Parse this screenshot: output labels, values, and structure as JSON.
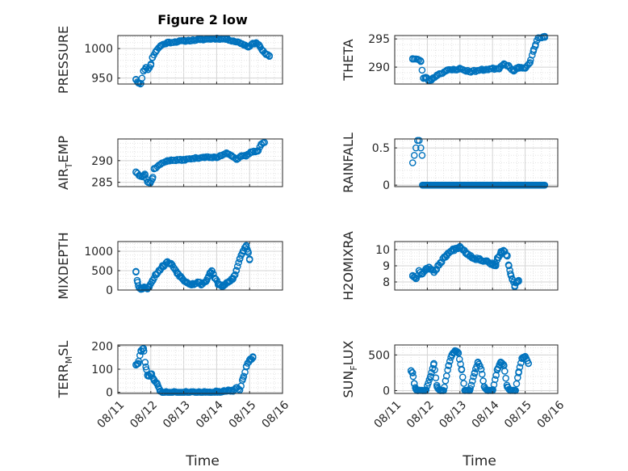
{
  "figure": {
    "title": "Figure 2 low",
    "xlabel": "Time"
  },
  "chart_data": [
    {
      "type": "scatter",
      "ylabel": "PRESSURE",
      "ylabel_parts": [
        "PRESSURE"
      ],
      "ylim": [
        940,
        1022
      ],
      "yticks": [
        950,
        1000
      ],
      "xlim": [
        0,
        5
      ],
      "xticks": [
        "08/11",
        "08/12",
        "08/13",
        "08/14",
        "08/15",
        "08/16"
      ],
      "grid": true,
      "anchors": [
        [
          0.55,
          948
        ],
        [
          0.62,
          942
        ],
        [
          0.7,
          941
        ],
        [
          0.78,
          962
        ],
        [
          0.85,
          968
        ],
        [
          0.92,
          965
        ],
        [
          1.0,
          972
        ],
        [
          1.05,
          985
        ],
        [
          1.15,
          995
        ],
        [
          1.3,
          1005
        ],
        [
          1.5,
          1010
        ],
        [
          2.0,
          1013
        ],
        [
          2.5,
          1015
        ],
        [
          3.0,
          1017
        ],
        [
          3.3,
          1016
        ],
        [
          3.5,
          1013
        ],
        [
          3.7,
          1010
        ],
        [
          3.85,
          1006
        ],
        [
          3.95,
          1003
        ],
        [
          4.1,
          1008
        ],
        [
          4.2,
          1010
        ],
        [
          4.3,
          1005
        ],
        [
          4.4,
          996
        ],
        [
          4.5,
          990
        ],
        [
          4.6,
          988
        ]
      ],
      "n": 90,
      "seed": 11,
      "noise": 1.2
    },
    {
      "type": "scatter",
      "ylabel": "THETA",
      "ylabel_parts": [
        "THETA"
      ],
      "ylim": [
        287,
        295.6
      ],
      "yticks": [
        290,
        295
      ],
      "xlim": [
        0,
        5
      ],
      "xticks": [
        "08/11",
        "08/12",
        "08/13",
        "08/14",
        "08/15",
        "08/16"
      ],
      "grid": true,
      "anchors": [
        [
          0.55,
          291.5
        ],
        [
          0.7,
          291.4
        ],
        [
          0.8,
          291
        ],
        [
          0.88,
          288
        ],
        [
          0.95,
          288.2
        ],
        [
          1.05,
          287.6
        ],
        [
          1.15,
          287.9
        ],
        [
          1.3,
          288.6
        ],
        [
          1.6,
          289.4
        ],
        [
          2.0,
          289.7
        ],
        [
          2.3,
          289.2
        ],
        [
          2.8,
          289.6
        ],
        [
          3.2,
          289.8
        ],
        [
          3.35,
          290.6
        ],
        [
          3.5,
          290.2
        ],
        [
          3.65,
          289.3
        ],
        [
          3.8,
          290.0
        ],
        [
          4.0,
          289.8
        ],
        [
          4.15,
          290.8
        ],
        [
          4.25,
          292.8
        ],
        [
          4.32,
          294.0
        ],
        [
          4.4,
          295.2
        ],
        [
          4.6,
          295.3
        ]
      ],
      "n": 85,
      "seed": 23,
      "noise": 0.15
    },
    {
      "type": "scatter",
      "ylabel": "AIR_TEMP",
      "ylabel_parts": [
        "AIR",
        "T",
        "EMP"
      ],
      "ylim": [
        284,
        295
      ],
      "yticks": [
        285,
        290
      ],
      "xlim": [
        0,
        5
      ],
      "xticks": [
        "08/11",
        "08/12",
        "08/13",
        "08/14",
        "08/15",
        "08/16"
      ],
      "grid": true,
      "anchors": [
        [
          0.55,
          287.4
        ],
        [
          0.65,
          286.6
        ],
        [
          0.75,
          286.4
        ],
        [
          0.82,
          286.9
        ],
        [
          0.9,
          285.1
        ],
        [
          0.98,
          284.8
        ],
        [
          1.05,
          285.8
        ],
        [
          1.1,
          288.1
        ],
        [
          1.3,
          289.2
        ],
        [
          1.5,
          290.0
        ],
        [
          2.0,
          290.2
        ],
        [
          2.3,
          290.5
        ],
        [
          2.6,
          290.8
        ],
        [
          3.0,
          290.7
        ],
        [
          3.3,
          291.8
        ],
        [
          3.45,
          291.2
        ],
        [
          3.6,
          290.3
        ],
        [
          3.75,
          291.0
        ],
        [
          3.9,
          291.1
        ],
        [
          4.05,
          292.0
        ],
        [
          4.25,
          292.2
        ],
        [
          4.35,
          293.8
        ],
        [
          4.45,
          294.2
        ]
      ],
      "n": 85,
      "seed": 37,
      "noise": 0.15
    },
    {
      "type": "scatter",
      "ylabel": "RAINFALL",
      "ylabel_parts": [
        "RAINFALL"
      ],
      "ylim": [
        -0.02,
        0.62
      ],
      "yticks": [
        0,
        0.5
      ],
      "tick_labels": [
        "0",
        "0.5"
      ],
      "xlim": [
        0,
        5
      ],
      "xticks": [
        "08/11",
        "08/12",
        "08/13",
        "08/14",
        "08/15",
        "08/16"
      ],
      "grid": true,
      "anchors": [
        [
          0.55,
          0.3
        ],
        [
          0.6,
          0.4
        ],
        [
          0.65,
          0.5
        ],
        [
          0.7,
          0.6
        ],
        [
          0.75,
          0.6
        ],
        [
          0.8,
          0.5
        ],
        [
          0.84,
          0.4
        ],
        [
          0.87,
          0.5
        ],
        [
          0.92,
          0.5
        ],
        [
          0.95,
          0.5
        ],
        [
          0.85,
          0.0
        ],
        [
          4.6,
          0.0
        ]
      ],
      "n": 120,
      "seed": 41,
      "noise": 0,
      "flat_from": 0.85,
      "flat_value": 0
    },
    {
      "type": "scatter",
      "ylabel": "MIXDEPTH",
      "ylabel_parts": [
        "MIXDEPTH"
      ],
      "ylim": [
        0,
        1250
      ],
      "yticks": [
        0,
        500,
        1000
      ],
      "xlim": [
        0,
        5
      ],
      "xticks": [
        "08/11",
        "08/12",
        "08/13",
        "08/14",
        "08/15",
        "08/16"
      ],
      "grid": true,
      "anchors": [
        [
          0.55,
          480
        ],
        [
          0.6,
          200
        ],
        [
          0.65,
          50
        ],
        [
          0.7,
          20
        ],
        [
          0.8,
          80
        ],
        [
          0.9,
          30
        ],
        [
          0.95,
          100
        ],
        [
          1.05,
          250
        ],
        [
          1.15,
          400
        ],
        [
          1.25,
          500
        ],
        [
          1.35,
          600
        ],
        [
          1.5,
          720
        ],
        [
          1.65,
          650
        ],
        [
          1.8,
          450
        ],
        [
          1.95,
          300
        ],
        [
          2.1,
          200
        ],
        [
          2.25,
          150
        ],
        [
          2.45,
          200
        ],
        [
          2.55,
          150
        ],
        [
          2.7,
          250
        ],
        [
          2.8,
          450
        ],
        [
          2.85,
          500
        ],
        [
          2.95,
          300
        ],
        [
          3.05,
          150
        ],
        [
          3.2,
          100
        ],
        [
          3.35,
          200
        ],
        [
          3.5,
          300
        ],
        [
          3.6,
          500
        ],
        [
          3.7,
          800
        ],
        [
          3.8,
          1000
        ],
        [
          3.9,
          1150
        ],
        [
          3.95,
          1000
        ],
        [
          4.0,
          800
        ]
      ],
      "n": 95,
      "seed": 53,
      "noise": 30
    },
    {
      "type": "scatter",
      "ylabel": "H2OMIXRA",
      "ylabel_parts": [
        "H2OMIXRA"
      ],
      "ylim": [
        7.5,
        10.5
      ],
      "yticks": [
        8,
        9,
        10
      ],
      "xlim": [
        0,
        5
      ],
      "xticks": [
        "08/11",
        "08/12",
        "08/13",
        "08/14",
        "08/15",
        "08/16"
      ],
      "grid": true,
      "anchors": [
        [
          0.55,
          8.4
        ],
        [
          0.65,
          8.2
        ],
        [
          0.75,
          8.7
        ],
        [
          0.85,
          8.5
        ],
        [
          0.95,
          8.8
        ],
        [
          1.05,
          8.9
        ],
        [
          1.2,
          8.6
        ],
        [
          1.4,
          9.2
        ],
        [
          1.6,
          9.7
        ],
        [
          1.8,
          10.0
        ],
        [
          2.0,
          10.2
        ],
        [
          2.2,
          9.8
        ],
        [
          2.4,
          9.5
        ],
        [
          2.6,
          9.4
        ],
        [
          2.8,
          9.3
        ],
        [
          3.0,
          9.1
        ],
        [
          3.1,
          9.0
        ],
        [
          3.15,
          9.5
        ],
        [
          3.25,
          9.8
        ],
        [
          3.35,
          9.9
        ],
        [
          3.45,
          9.6
        ],
        [
          3.5,
          9.0
        ],
        [
          3.55,
          8.5
        ],
        [
          3.6,
          8.2
        ],
        [
          3.68,
          7.7
        ],
        [
          3.75,
          8.0
        ],
        [
          3.8,
          8.1
        ]
      ],
      "n": 85,
      "seed": 67,
      "noise": 0.08
    },
    {
      "type": "scatter",
      "ylabel": "TERR_MSL",
      "ylabel_parts": [
        "TERR",
        "M",
        "SL"
      ],
      "ylim": [
        -5,
        205
      ],
      "yticks": [
        0,
        100,
        200
      ],
      "xlim": [
        0,
        5
      ],
      "xticks": [
        "08/11",
        "08/12",
        "08/13",
        "08/14",
        "08/15",
        "08/16"
      ],
      "grid": true,
      "anchors": [
        [
          0.55,
          120
        ],
        [
          0.62,
          125
        ],
        [
          0.7,
          180
        ],
        [
          0.78,
          190
        ],
        [
          0.85,
          110
        ],
        [
          0.9,
          75
        ],
        [
          0.95,
          70
        ],
        [
          1.02,
          80
        ],
        [
          1.1,
          55
        ],
        [
          1.2,
          35
        ],
        [
          1.28,
          5
        ],
        [
          1.35,
          0
        ],
        [
          2.8,
          0
        ],
        [
          3.0,
          2
        ],
        [
          3.2,
          3
        ],
        [
          3.35,
          10
        ],
        [
          3.5,
          5
        ],
        [
          3.6,
          20
        ],
        [
          3.7,
          10
        ],
        [
          3.8,
          60
        ],
        [
          3.9,
          110
        ],
        [
          4.0,
          140
        ],
        [
          4.1,
          150
        ]
      ],
      "n": 90,
      "seed": 79,
      "noise": 4,
      "clip_min": 0
    },
    {
      "type": "scatter",
      "ylabel": "SUN_FLUX",
      "ylabel_parts": [
        "SUN",
        "F",
        "LUX"
      ],
      "ylim": [
        -40,
        640
      ],
      "yticks": [
        0,
        500
      ],
      "xlim": [
        0,
        5
      ],
      "xticks": [
        "08/11",
        "08/12",
        "08/13",
        "08/14",
        "08/15",
        "08/16"
      ],
      "grid": true,
      "anchors": [
        [
          0.5,
          280
        ],
        [
          0.55,
          250
        ],
        [
          0.6,
          100
        ],
        [
          0.65,
          20
        ],
        [
          0.7,
          0
        ],
        [
          0.85,
          0
        ],
        [
          0.95,
          0
        ],
        [
          1.1,
          200
        ],
        [
          1.2,
          380
        ],
        [
          1.3,
          50
        ],
        [
          1.4,
          0
        ],
        [
          1.5,
          0
        ],
        [
          1.65,
          350
        ],
        [
          1.75,
          500
        ],
        [
          1.85,
          560
        ],
        [
          1.95,
          530
        ],
        [
          2.05,
          300
        ],
        [
          2.15,
          0
        ],
        [
          2.3,
          0
        ],
        [
          2.45,
          250
        ],
        [
          2.55,
          400
        ],
        [
          2.65,
          300
        ],
        [
          2.75,
          50
        ],
        [
          2.85,
          0
        ],
        [
          3.0,
          0
        ],
        [
          3.15,
          300
        ],
        [
          3.25,
          400
        ],
        [
          3.35,
          350
        ],
        [
          3.45,
          50
        ],
        [
          3.55,
          0
        ],
        [
          3.7,
          0
        ],
        [
          3.8,
          250
        ],
        [
          3.9,
          450
        ],
        [
          4.0,
          480
        ],
        [
          4.1,
          380
        ]
      ],
      "n": 110,
      "seed": 97,
      "noise": 8,
      "clip_min": 0
    }
  ]
}
